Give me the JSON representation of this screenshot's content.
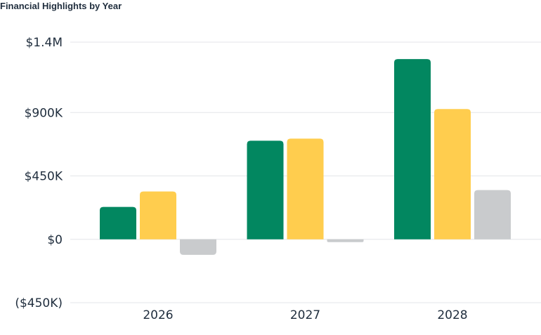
{
  "chart_data": {
    "type": "bar",
    "title": "Financial Highlights by Year",
    "categories": [
      "2026",
      "2027",
      "2028"
    ],
    "series": [
      {
        "values": [
          230000,
          700000,
          1280000
        ],
        "color": "#028760"
      },
      {
        "values": [
          340000,
          715000,
          925000
        ],
        "color": "#ffcd4e"
      },
      {
        "values": [
          -110000,
          -20000,
          350000
        ],
        "color": "#c9cbcd"
      }
    ],
    "ylim": [
      -450000,
      1400000
    ],
    "y_ticks": [
      {
        "value": 1400000,
        "label": "$1.4M"
      },
      {
        "value": 900000,
        "label": "$900K"
      },
      {
        "value": 450000,
        "label": "$450K"
      },
      {
        "value": 0,
        "label": "$0"
      },
      {
        "value": -450000,
        "label": "($450K)"
      }
    ],
    "grid": true,
    "legend": "none"
  }
}
